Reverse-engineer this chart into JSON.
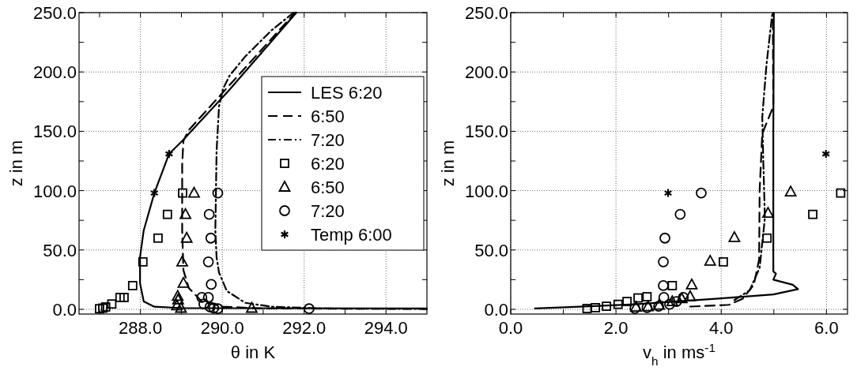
{
  "chart_data": [
    {
      "type": "line",
      "xlabel": "θ in K",
      "ylabel": "z in m",
      "xlim": [
        286.5,
        295
      ],
      "ylim": [
        -4,
        250
      ],
      "xticks": [
        {
          "value": 287,
          "label": null
        },
        {
          "value": 288,
          "label": "288.0"
        },
        {
          "value": 289,
          "label": null
        },
        {
          "value": 290,
          "label": "290.0"
        },
        {
          "value": 291,
          "label": null
        },
        {
          "value": 292,
          "label": "292.0"
        },
        {
          "value": 293,
          "label": null
        },
        {
          "value": 294,
          "label": "294.0"
        }
      ],
      "yticks": [
        {
          "value": 0,
          "label": "0.0"
        },
        {
          "value": 25,
          "label": null
        },
        {
          "value": 50,
          "label": "50.0"
        },
        {
          "value": 75,
          "label": null
        },
        {
          "value": 100,
          "label": "100.0"
        },
        {
          "value": 125,
          "label": null
        },
        {
          "value": 150,
          "label": "150.0"
        },
        {
          "value": 175,
          "label": null
        },
        {
          "value": 200,
          "label": "200.0"
        },
        {
          "value": 225,
          "label": null
        },
        {
          "value": 250,
          "label": "250.0"
        }
      ],
      "grid": true,
      "legend": "right",
      "series": [
        {
          "name": "LES 6:20",
          "line_style": "solid",
          "color": "#000000",
          "x": [
            295,
            289.05,
            288.34,
            288.08,
            287.99,
            287.99,
            288.08,
            288.34,
            288.7,
            289.05,
            290.15,
            291.81
          ],
          "values": [
            0.8,
            1,
            2.2,
            6.6,
            22,
            44,
            66.5,
            98,
            131,
            143,
            184,
            250
          ]
        },
        {
          "name": "6:50",
          "line_style": "dashed",
          "color": "#000000",
          "x": [
            295,
            291,
            290.02,
            289.5,
            289.18,
            289.05,
            289.02,
            289.02,
            289.05,
            289.18,
            291.78
          ],
          "values": [
            0.5,
            0.7,
            2.2,
            6.6,
            18,
            33,
            66.5,
            122,
            142,
            151,
            250
          ]
        },
        {
          "name": "7:20",
          "line_style": "dashdot",
          "color": "#000000",
          "x": [
            295,
            292.5,
            291.2,
            290.56,
            290.11,
            289.92,
            289.86,
            289.83,
            289.86,
            289.92,
            290.02,
            290.18,
            290.56,
            291.2,
            291.74
          ],
          "values": [
            0.3,
            0.7,
            2.2,
            5.5,
            15.5,
            31,
            44,
            66.5,
            133,
            171,
            186,
            197,
            213,
            235,
            250
          ]
        },
        {
          "name": "6:20",
          "type": "scatter",
          "marker": "square",
          "color": "#000000",
          "x": [
            287.0,
            287.08,
            287.15,
            287.3,
            287.5,
            287.6,
            287.81,
            288.06,
            288.43,
            288.66,
            289.03
          ],
          "values": [
            0.5,
            1,
            2,
            4.5,
            10,
            10,
            20,
            40,
            60,
            80,
            98
          ]
        },
        {
          "name": "6:50",
          "type": "scatter",
          "marker": "triangle",
          "color": "#000000",
          "x": [
            290.72,
            288.99,
            288.89,
            288.92,
            288.91,
            289.05,
            289.02,
            289.13,
            289.1,
            289.31
          ],
          "values": [
            1,
            1,
            3,
            8,
            11,
            22,
            40,
            60,
            80,
            98
          ]
        },
        {
          "name": "7:20",
          "type": "scatter",
          "marker": "circle",
          "color": "#000000",
          "x": [
            292.12,
            289.89,
            289.79,
            289.7,
            289.55,
            289.5,
            289.66,
            289.73,
            289.66,
            289.72,
            289.68,
            289.89
          ],
          "values": [
            0.5,
            0.5,
            1,
            2,
            4.5,
            10,
            10,
            21,
            40,
            60,
            80,
            98
          ]
        },
        {
          "name": "Temp 6:00",
          "type": "scatter",
          "marker": "cross",
          "color": "#000000",
          "x": [
            288.34,
            288.7
          ],
          "values": [
            98,
            131
          ]
        }
      ]
    },
    {
      "type": "line",
      "xlabel": "v$_{h}$ in ms$^{-1}$",
      "ylabel": "z in m",
      "xlim": [
        0,
        6.4
      ],
      "ylim": [
        -4,
        250
      ],
      "xticks": [
        {
          "value": 0,
          "label": "0.0"
        },
        {
          "value": 1,
          "label": null
        },
        {
          "value": 2,
          "label": "2.0"
        },
        {
          "value": 3,
          "label": null
        },
        {
          "value": 4,
          "label": "4.0"
        },
        {
          "value": 5,
          "label": null
        },
        {
          "value": 6,
          "label": "6.0"
        }
      ],
      "yticks": [
        {
          "value": 0,
          "label": "0.0"
        },
        {
          "value": 25,
          "label": null
        },
        {
          "value": 50,
          "label": "50.0"
        },
        {
          "value": 75,
          "label": null
        },
        {
          "value": 100,
          "label": "100.0"
        },
        {
          "value": 125,
          "label": null
        },
        {
          "value": 150,
          "label": "150.0"
        },
        {
          "value": 175,
          "label": null
        },
        {
          "value": 200,
          "label": "200.0"
        },
        {
          "value": 225,
          "label": null
        },
        {
          "value": 250,
          "label": "250.0"
        }
      ],
      "grid": true,
      "series": [
        {
          "line_style": "solid",
          "color": "#000000",
          "x": [
            0.46,
            2.36,
            3.94,
            4.99,
            5.46,
            5.36,
            4.99,
            5.04,
            4.99,
            4.99,
            5.0
          ],
          "values": [
            0.7,
            4.2,
            9,
            12.5,
            17,
            20.7,
            25,
            30,
            32,
            148,
            250
          ]
        },
        {
          "line_style": "dashed",
          "color": "#000000",
          "x": [
            3.41,
            4.15,
            4.41,
            4.62,
            4.72,
            4.73,
            4.78,
            4.99,
            4.98
          ],
          "values": [
            2.3,
            3.8,
            9,
            20.7,
            42,
            100,
            148,
            171,
            249
          ]
        },
        {
          "line_style": "dashdot",
          "color": "#000000",
          "x": [
            4.25,
            4.54,
            4.73,
            4.83,
            4.8,
            4.78,
            4.86,
            4.97
          ],
          "values": [
            7.8,
            16,
            35,
            77,
            124,
            162,
            206,
            249
          ]
        },
        {
          "type": "scatter",
          "marker": "square",
          "color": "#000000",
          "x": [
            1.45,
            1.61,
            1.82,
            2.04,
            2.21,
            2.42,
            2.59,
            3.07,
            4.04,
            4.87,
            5.74,
            6.27
          ],
          "values": [
            0.7,
            1.4,
            2.6,
            4.2,
            6.6,
            9.6,
            10.6,
            20,
            40,
            60,
            80,
            98
          ]
        },
        {
          "type": "scatter",
          "marker": "triangle",
          "color": "#000000",
          "x": [
            2.38,
            2.61,
            2.82,
            3.07,
            3.25,
            3.41,
            3.44,
            3.79,
            4.25,
            4.89,
            5.32
          ],
          "values": [
            1.9,
            2.3,
            3.5,
            6.6,
            9,
            10.8,
            20.7,
            40.6,
            60.6,
            81,
            99
          ]
        },
        {
          "type": "scatter",
          "marker": "circle",
          "color": "#000000",
          "x": [
            2.36,
            2.59,
            2.81,
            3.02,
            3.15,
            3.28,
            2.91,
            2.9,
            2.9,
            2.93,
            3.22,
            3.62
          ],
          "values": [
            0.7,
            1.4,
            2.6,
            4.2,
            6.6,
            10,
            10,
            20,
            40,
            60,
            80,
            98
          ]
        },
        {
          "type": "scatter",
          "marker": "cross",
          "color": "#000000",
          "x": [
            2.99,
            5.99
          ],
          "values": [
            98,
            131
          ]
        }
      ]
    }
  ]
}
